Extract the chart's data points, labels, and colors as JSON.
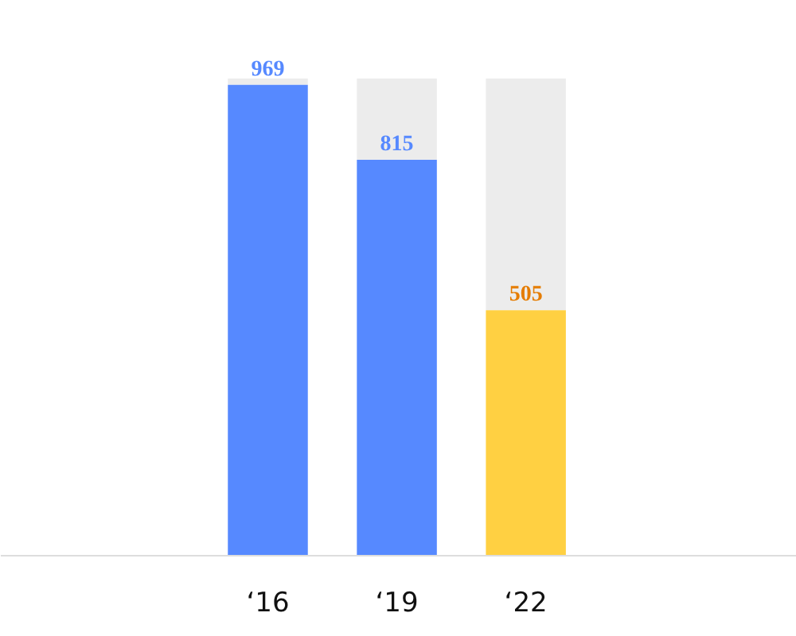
{
  "chart_data": {
    "type": "bar",
    "stacked": true,
    "categories": [
      "‘16",
      "‘19",
      "‘22"
    ],
    "grid": false,
    "series": [
      {
        "colors": [
          "#5689ff",
          "#5689ff",
          "#ffd042"
        ],
        "values": [
          969,
          815,
          505
        ],
        "value_labels": [
          "969",
          "815",
          "505"
        ]
      },
      {
        "color": "#ececec",
        "values": [
          13,
          167,
          477
        ]
      }
    ]
  }
}
